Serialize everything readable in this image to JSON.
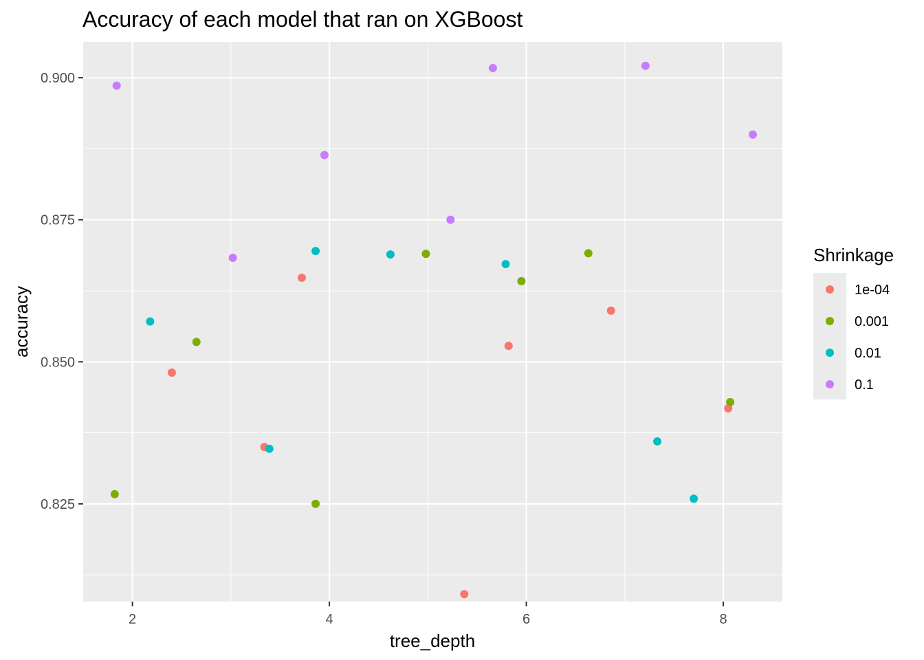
{
  "chart_data": {
    "type": "scatter",
    "title": "Accuracy of each model that ran on XGBoost",
    "xlabel": "tree_depth",
    "ylabel": "accuracy",
    "xlim": [
      1.5,
      8.6
    ],
    "ylim": [
      0.8078,
      0.9063
    ],
    "x_ticks": [
      2,
      4,
      6,
      8
    ],
    "x_tick_labels": [
      "2",
      "4",
      "6",
      "8"
    ],
    "y_ticks": [
      0.825,
      0.85,
      0.875,
      0.9
    ],
    "y_tick_labels": [
      "0.825",
      "0.850",
      "0.875",
      "0.900"
    ],
    "grid": true,
    "legend": {
      "title": "Shrinkage",
      "position": "right",
      "entries": [
        {
          "label": "1e-04",
          "color": "#F8766D"
        },
        {
          "label": "0.001",
          "color": "#7CAE00"
        },
        {
          "label": "0.01",
          "color": "#00BFC4"
        },
        {
          "label": "0.1",
          "color": "#C77CFF"
        }
      ]
    },
    "series": [
      {
        "name": "1e-04",
        "color": "#F8766D",
        "points": [
          {
            "x": 2.4,
            "y": 0.8481
          },
          {
            "x": 3.34,
            "y": 0.835
          },
          {
            "x": 3.72,
            "y": 0.8648
          },
          {
            "x": 5.37,
            "y": 0.8091
          },
          {
            "x": 5.82,
            "y": 0.8528
          },
          {
            "x": 6.86,
            "y": 0.859
          },
          {
            "x": 8.05,
            "y": 0.8418
          }
        ]
      },
      {
        "name": "0.001",
        "color": "#7CAE00",
        "points": [
          {
            "x": 1.82,
            "y": 0.8267
          },
          {
            "x": 2.65,
            "y": 0.8535
          },
          {
            "x": 3.86,
            "y": 0.825
          },
          {
            "x": 4.98,
            "y": 0.869
          },
          {
            "x": 5.95,
            "y": 0.8642
          },
          {
            "x": 6.63,
            "y": 0.8691
          },
          {
            "x": 8.07,
            "y": 0.8429
          }
        ]
      },
      {
        "name": "0.01",
        "color": "#00BFC4",
        "points": [
          {
            "x": 2.18,
            "y": 0.8571
          },
          {
            "x": 3.39,
            "y": 0.8347
          },
          {
            "x": 3.86,
            "y": 0.8695
          },
          {
            "x": 4.62,
            "y": 0.8689
          },
          {
            "x": 5.79,
            "y": 0.8672
          },
          {
            "x": 7.33,
            "y": 0.836
          },
          {
            "x": 7.7,
            "y": 0.8259
          }
        ]
      },
      {
        "name": "0.1",
        "color": "#C77CFF",
        "points": [
          {
            "x": 1.84,
            "y": 0.8986
          },
          {
            "x": 3.02,
            "y": 0.8683
          },
          {
            "x": 3.95,
            "y": 0.8864
          },
          {
            "x": 5.23,
            "y": 0.875
          },
          {
            "x": 5.66,
            "y": 0.9017
          },
          {
            "x": 7.21,
            "y": 0.9021
          },
          {
            "x": 8.3,
            "y": 0.89
          }
        ]
      }
    ]
  }
}
